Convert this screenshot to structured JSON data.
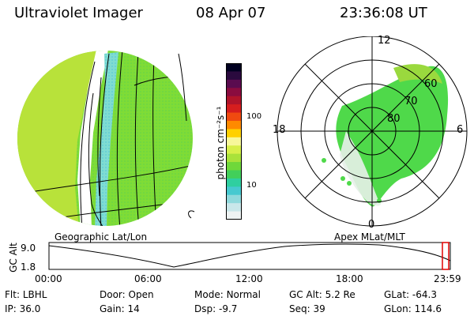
{
  "header": {
    "instrument": "Ultraviolet Imager",
    "date": "08 Apr 07",
    "time": "23:36:08 UT"
  },
  "left_panel": {
    "caption": "Geographic Lat/Lon",
    "fill_color": "#7fde2e",
    "edge_color": "#cfe83a"
  },
  "right_panel": {
    "caption": "Apex MLat/MLT",
    "mlt_labels": [
      "12",
      "18",
      "6",
      "0"
    ],
    "mlat_labels": [
      "60",
      "70",
      "80"
    ],
    "fill_color": "#4fd94a",
    "low_color": "#e7efe9"
  },
  "colorbar": {
    "unit": "photon cm⁻²s⁻¹",
    "tick_labels": [
      "100",
      "10"
    ],
    "colors": [
      "#000020",
      "#2a0a3e",
      "#5a0c4f",
      "#8a0c3f",
      "#b0142a",
      "#d61e1e",
      "#f04a10",
      "#ff8a00",
      "#ffd000",
      "#f7f79a",
      "#d7ef4a",
      "#a9e23a",
      "#6fd83a",
      "#42cf5a",
      "#2fcfa0",
      "#46c9d0",
      "#8fd9dc",
      "#c9e7ea",
      "#eef3f3"
    ]
  },
  "timeline": {
    "axis_label": "GC Alt",
    "y_labels": [
      "9.0",
      "1.8"
    ],
    "x_labels": [
      "00:00",
      "06:00",
      "12:00",
      "18:00",
      "23:59"
    ]
  },
  "info": {
    "row1": [
      {
        "label": "Flt:",
        "value": "LBHL"
      },
      {
        "label": "Door:",
        "value": "Open"
      },
      {
        "label": "Mode:",
        "value": "Normal"
      },
      {
        "label": "GC Alt:",
        "value": "5.2 Re"
      },
      {
        "label": "GLat:",
        "value": "-64.3"
      }
    ],
    "row2": [
      {
        "label": "IP:",
        "value": "36.0"
      },
      {
        "label": "Gain:",
        "value": "14"
      },
      {
        "label": "Dsp:",
        "value": "-9.7"
      },
      {
        "label": "Seq:",
        "value": "39"
      },
      {
        "label": "GLon:",
        "value": "114.6"
      }
    ]
  }
}
